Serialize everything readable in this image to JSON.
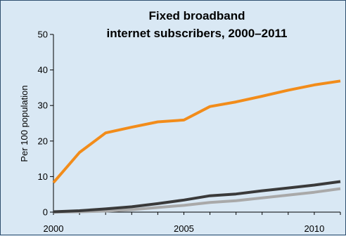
{
  "chart_data": {
    "type": "line",
    "title_lines": [
      "Fixed broadband",
      "internet subscribers, 2000–2011"
    ],
    "xlabel": "",
    "ylabel": "Per 100 population",
    "xlim": [
      2000,
      2011
    ],
    "ylim": [
      0,
      50
    ],
    "x_ticks": [
      2000,
      2005,
      2010
    ],
    "y_ticks": [
      0,
      10,
      20,
      30,
      40,
      50
    ],
    "grid": false,
    "legend": "none",
    "x": [
      2000,
      2001,
      2002,
      2003,
      2004,
      2005,
      2006,
      2007,
      2008,
      2009,
      2010,
      2011
    ],
    "series": [
      {
        "color": "#f28c1a",
        "values": [
          8.3,
          16.8,
          22.3,
          23.9,
          25.4,
          25.9,
          29.7,
          31.0,
          32.6,
          34.3,
          35.8,
          36.9
        ]
      },
      {
        "color": "#3a3a3a",
        "values": [
          0.1,
          0.4,
          0.9,
          1.5,
          2.4,
          3.4,
          4.6,
          5.1,
          6.0,
          6.8,
          7.6,
          8.6
        ]
      },
      {
        "color": "#a9a9a9",
        "values": [
          0.0,
          0.1,
          0.3,
          0.7,
          1.3,
          1.9,
          2.7,
          3.2,
          4.0,
          4.8,
          5.6,
          6.6
        ]
      }
    ]
  }
}
